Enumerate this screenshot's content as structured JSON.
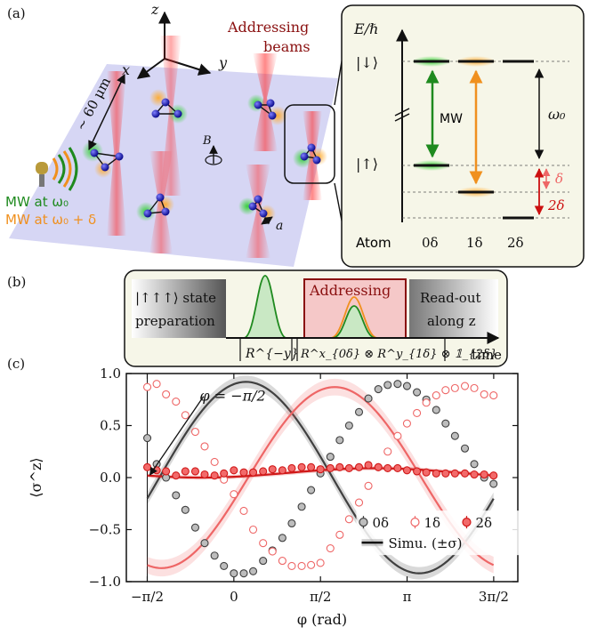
{
  "panels": {
    "a": {
      "tag": "(a)",
      "axes": {
        "x": "x",
        "y": "y",
        "z": "z"
      },
      "addressing_title": [
        "Addressing",
        "beams"
      ],
      "spacing_label": "~ 60 μm",
      "field_label": "B",
      "a_label": "a",
      "mw_line1": "MW at ω₀",
      "mw_line2": "MW at ω₀ + δ",
      "level_diagram": {
        "energy_label": "E/ℏ",
        "state_down": "|↓⟩",
        "state_up": "|↑⟩",
        "mw_label": "MW",
        "omega_label": "ω₀",
        "delta_label": "δ",
        "two_delta_label": "2δ",
        "columns": [
          "Atom",
          "0δ",
          "1δ",
          "2δ"
        ]
      }
    },
    "b": {
      "tag": "(b)",
      "prep": [
        "|↑↑↑⟩ state",
        "preparation"
      ],
      "addressing": "Addressing",
      "readout": [
        "Read-out",
        "along z"
      ],
      "time": "time",
      "rot1": "R^{−y}",
      "rot2": "R^x_{0δ} ⊗ R^y_{1δ} ⊗ 𝟙_{2δ}"
    },
    "c": {
      "tag": "(c)",
      "annotation": "φ = −π/2",
      "legend": {
        "items": [
          "0δ",
          "1δ",
          "2δ"
        ],
        "sim": "Simu. (±σ)"
      }
    }
  },
  "colors": {
    "green": "#1f8a1f",
    "orange": "#f0901e",
    "red": "#cc1010",
    "gray": "#404040",
    "pink": "#ee5555"
  },
  "chart_data": {
    "type": "line",
    "xlabel": "φ (rad)",
    "ylabel": "⟨σ^z⟩",
    "xlim": [
      -1.95,
      5.15
    ],
    "ylim": [
      -1.0,
      1.0
    ],
    "xticks": [
      -1.5708,
      0,
      1.5708,
      3.1416,
      4.7124
    ],
    "xtick_labels": [
      "−π/2",
      "0",
      "π/2",
      "π",
      "3π/2"
    ],
    "yticks": [
      1.0,
      0.5,
      0.0,
      -0.5,
      -1.0
    ],
    "ytick_labels": [
      "1.0",
      "0.5",
      "0.0",
      "−0.5",
      "−1.0"
    ],
    "vline_x": -1.5708,
    "series": [
      {
        "name": "0δ",
        "color": "#404040",
        "marker_fill": "#bdbdbd",
        "x": [
          -1.57,
          -1.4,
          -1.23,
          -1.05,
          -0.88,
          -0.7,
          -0.53,
          -0.35,
          -0.18,
          0.0,
          0.18,
          0.35,
          0.53,
          0.7,
          0.88,
          1.05,
          1.23,
          1.4,
          1.57,
          1.75,
          1.92,
          2.09,
          2.27,
          2.44,
          2.62,
          2.79,
          2.97,
          3.14,
          3.32,
          3.49,
          3.67,
          3.84,
          4.01,
          4.19,
          4.36,
          4.54,
          4.71
        ],
        "y": [
          0.38,
          0.13,
          0.0,
          -0.17,
          -0.31,
          -0.48,
          -0.63,
          -0.75,
          -0.85,
          -0.92,
          -0.92,
          -0.9,
          -0.8,
          -0.7,
          -0.58,
          -0.44,
          -0.28,
          -0.12,
          0.04,
          0.2,
          0.36,
          0.5,
          0.63,
          0.76,
          0.85,
          0.89,
          0.9,
          0.88,
          0.82,
          0.75,
          0.65,
          0.52,
          0.4,
          0.28,
          0.13,
          0.0,
          -0.06
        ],
        "fit": {
          "amp": 0.92,
          "offset": 0.0,
          "phase": 0.22,
          "sigma": 0.06
        }
      },
      {
        "name": "1δ",
        "color": "#ee6666",
        "marker_fill": "#ffffff",
        "x": [
          -1.57,
          -1.4,
          -1.23,
          -1.05,
          -0.88,
          -0.7,
          -0.53,
          -0.35,
          -0.18,
          0.0,
          0.18,
          0.35,
          0.53,
          0.7,
          0.88,
          1.05,
          1.23,
          1.4,
          1.57,
          1.75,
          1.92,
          2.09,
          2.27,
          2.44,
          2.62,
          2.79,
          2.97,
          3.14,
          3.32,
          3.49,
          3.67,
          3.84,
          4.01,
          4.19,
          4.36,
          4.54,
          4.71
        ],
        "y": [
          0.87,
          0.9,
          0.8,
          0.73,
          0.6,
          0.44,
          0.3,
          0.15,
          -0.02,
          -0.16,
          -0.32,
          -0.5,
          -0.63,
          -0.71,
          -0.8,
          -0.85,
          -0.85,
          -0.84,
          -0.82,
          -0.68,
          -0.55,
          -0.4,
          -0.24,
          -0.08,
          0.1,
          0.25,
          0.4,
          0.52,
          0.62,
          0.72,
          0.79,
          0.84,
          0.86,
          0.88,
          0.86,
          0.8,
          0.79
        ],
        "fit": {
          "amp": 0.87,
          "offset": 0.0,
          "phase": 1.83,
          "sigma": 0.08
        }
      },
      {
        "name": "2δ",
        "color": "#d01818",
        "marker_fill": "#f26a6a",
        "x": [
          -1.57,
          -1.4,
          -1.23,
          -1.05,
          -0.88,
          -0.7,
          -0.53,
          -0.35,
          -0.18,
          0.0,
          0.18,
          0.35,
          0.53,
          0.7,
          0.88,
          1.05,
          1.23,
          1.4,
          1.57,
          1.75,
          1.92,
          2.09,
          2.27,
          2.44,
          2.62,
          2.79,
          2.97,
          3.14,
          3.32,
          3.49,
          3.67,
          3.84,
          4.01,
          4.19,
          4.36,
          4.54,
          4.71
        ],
        "y": [
          0.1,
          0.07,
          0.06,
          0.02,
          0.06,
          0.06,
          0.03,
          0.02,
          0.04,
          0.07,
          0.05,
          0.05,
          0.06,
          0.08,
          0.07,
          0.09,
          0.1,
          0.1,
          0.08,
          0.09,
          0.1,
          0.09,
          0.1,
          0.12,
          0.1,
          0.09,
          0.09,
          0.07,
          0.06,
          0.05,
          0.04,
          0.04,
          0.04,
          0.04,
          0.03,
          0.03,
          0.02
        ],
        "fit": {
          "amp": 0.045,
          "offset": 0.045,
          "phase": 2.55,
          "sigma": 0.02
        }
      }
    ]
  }
}
